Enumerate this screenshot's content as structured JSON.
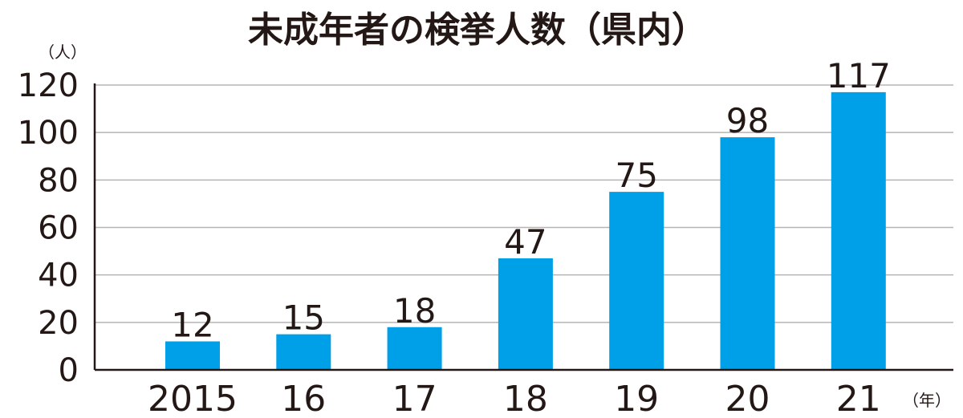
{
  "chart_data": {
    "type": "bar",
    "title": "未成年者の検挙人数（県内）",
    "y_unit": "（人）",
    "x_unit": "（年）",
    "categories": [
      "2015",
      "16",
      "17",
      "18",
      "19",
      "20",
      "21"
    ],
    "values": [
      12,
      15,
      18,
      47,
      75,
      98,
      117
    ],
    "ylim": [
      0,
      120
    ],
    "yticks": [
      0,
      20,
      40,
      60,
      80,
      100,
      120
    ],
    "grid": true,
    "legend": "none",
    "colors": {
      "bar": "#00a0e9",
      "text": "#231815",
      "grid": "#b5b5b5"
    }
  }
}
